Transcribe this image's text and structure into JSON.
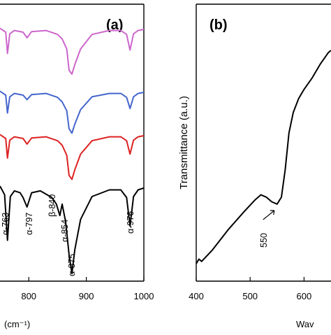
{
  "chart_data": [
    {
      "panel": "(a)",
      "type": "line",
      "xlabel": "(cm⁻¹)",
      "ylabel": "",
      "xlim": [
        750,
        1000
      ],
      "xticks": [
        "800",
        "900",
        "1000"
      ],
      "grid": false,
      "series": [
        {
          "color": "#cc66cc",
          "x": [
            750,
            760,
            763,
            767,
            775,
            790,
            797,
            805,
            830,
            850,
            858,
            866,
            870,
            875,
            880,
            890,
            910,
            940,
            960,
            970,
            976,
            982,
            990,
            1000
          ],
          "y": [
            0.97,
            0.9,
            0.52,
            0.87,
            0.93,
            0.9,
            0.8,
            0.91,
            0.93,
            0.86,
            0.78,
            0.6,
            0.22,
            0.15,
            0.32,
            0.6,
            0.86,
            0.93,
            0.93,
            0.86,
            0.58,
            0.87,
            0.93,
            0.95
          ]
        },
        {
          "color": "#4466cc",
          "x": [
            750,
            760,
            763,
            767,
            775,
            790,
            797,
            805,
            830,
            850,
            858,
            866,
            870,
            875,
            880,
            890,
            910,
            940,
            960,
            970,
            976,
            982,
            990,
            1000
          ],
          "y": [
            0.97,
            0.9,
            0.58,
            0.87,
            0.93,
            0.9,
            0.82,
            0.91,
            0.93,
            0.86,
            0.78,
            0.62,
            0.3,
            0.22,
            0.38,
            0.64,
            0.87,
            0.93,
            0.93,
            0.86,
            0.66,
            0.87,
            0.93,
            0.95
          ]
        },
        {
          "color": "#dd2222",
          "x": [
            750,
            760,
            763,
            767,
            775,
            790,
            797,
            805,
            830,
            850,
            858,
            866,
            870,
            875,
            880,
            890,
            910,
            940,
            960,
            970,
            976,
            982,
            990,
            1000
          ],
          "y": [
            0.97,
            0.9,
            0.55,
            0.87,
            0.93,
            0.9,
            0.8,
            0.91,
            0.93,
            0.86,
            0.78,
            0.6,
            0.24,
            0.17,
            0.34,
            0.62,
            0.86,
            0.93,
            0.93,
            0.86,
            0.62,
            0.87,
            0.93,
            0.95
          ]
        },
        {
          "color": "#000000",
          "x": [
            750,
            758,
            763,
            768,
            775,
            785,
            790,
            797,
            805,
            820,
            840,
            848,
            854,
            858,
            864,
            870,
            875,
            880,
            890,
            910,
            940,
            960,
            970,
            976,
            982,
            990,
            1000
          ],
          "y": [
            0.97,
            0.88,
            0.4,
            0.86,
            0.92,
            0.9,
            0.85,
            0.75,
            0.9,
            0.92,
            0.85,
            0.78,
            0.66,
            0.78,
            0.6,
            0.25,
            0.05,
            0.3,
            0.62,
            0.86,
            0.93,
            0.93,
            0.85,
            0.55,
            0.86,
            0.93,
            0.95
          ]
        }
      ],
      "annotations": [
        "α-763",
        "α-797",
        "β-840",
        "α-854",
        "α-875",
        "α-976"
      ]
    },
    {
      "panel": "(b)",
      "type": "line",
      "xlabel": "Wav",
      "ylabel": "Transmittance (a.u.)",
      "xlim": [
        400,
        650
      ],
      "xticks": [
        "400",
        "500",
        "600"
      ],
      "grid": false,
      "series": [
        {
          "color": "#000000",
          "x": [
            400,
            405,
            410,
            430,
            460,
            490,
            510,
            520,
            530,
            540,
            550,
            558,
            565,
            572,
            580,
            590,
            600,
            615,
            630,
            645,
            650
          ],
          "y": [
            0.07,
            0.09,
            0.08,
            0.13,
            0.22,
            0.3,
            0.35,
            0.37,
            0.36,
            0.34,
            0.33,
            0.36,
            0.48,
            0.64,
            0.73,
            0.79,
            0.83,
            0.88,
            0.94,
            0.99,
            1.0
          ]
        }
      ],
      "annotations": [
        "550"
      ]
    }
  ]
}
